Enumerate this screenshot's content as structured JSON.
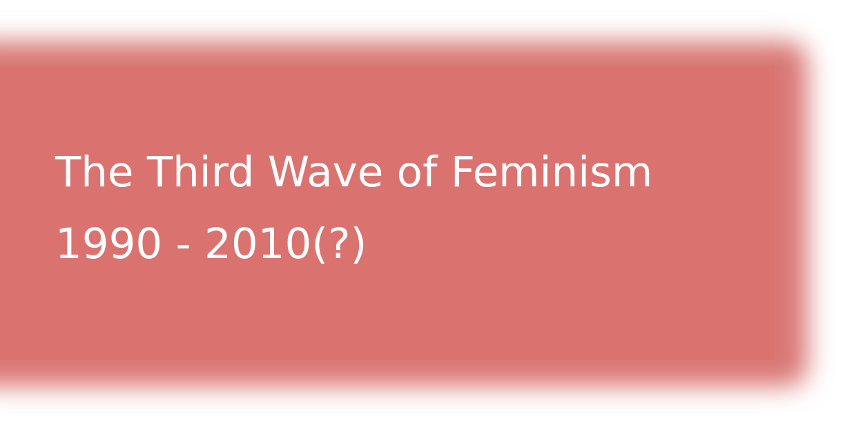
{
  "banner": {
    "title_line1": "The Third Wave of Feminism",
    "title_line2": "1990 - 2010(?)"
  },
  "colors": {
    "card": "#da7370",
    "glow": "#d97774",
    "text": "#ffffff",
    "page": "#ffffff"
  }
}
